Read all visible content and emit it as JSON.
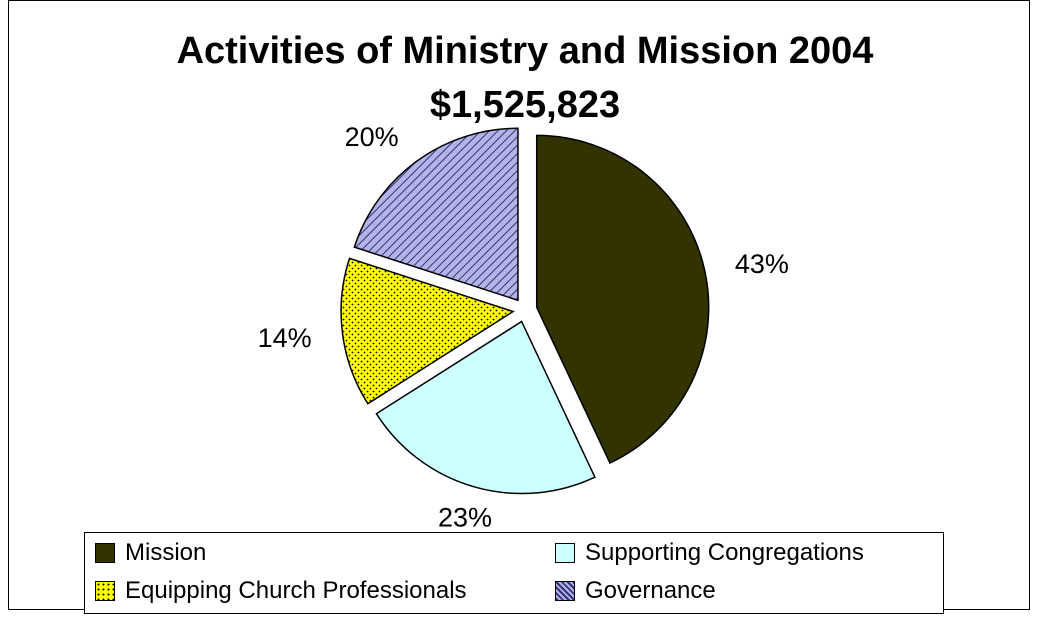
{
  "chart_data": {
    "type": "pie",
    "title": "Activities of Ministry and Mission 2004",
    "subtitle": "$1,525,823",
    "categories": [
      "Mission",
      "Supporting Congregations",
      "Equipping Church Professionals",
      "Governance"
    ],
    "values": [
      43,
      23,
      14,
      20
    ],
    "labels": [
      "43%",
      "23%",
      "14%",
      "20%"
    ],
    "colors": [
      "#333300",
      "#ccffff",
      "#ffff00",
      "#9999ff"
    ],
    "patterns": [
      "solid",
      "solid",
      "dotted",
      "diagonal-hatch"
    ],
    "exploded": true,
    "legend_position": "bottom"
  }
}
